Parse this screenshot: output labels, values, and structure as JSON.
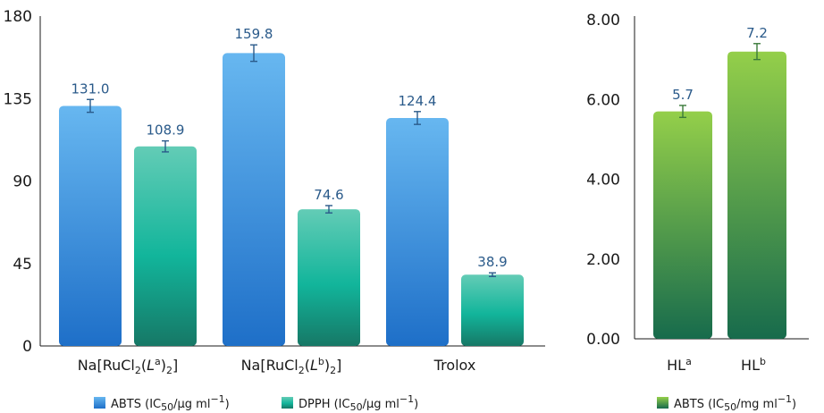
{
  "chart_data": [
    {
      "type": "bar",
      "categories": [
        "Na[RuCl2(La)2]",
        "Na[RuCl2(Lb)2]",
        "Trolox"
      ],
      "ylim": [
        0,
        180
      ],
      "yticks": [
        "0",
        "45",
        "90",
        "135",
        "180"
      ],
      "grid": false,
      "legend_position": "bottom",
      "series": [
        {
          "name": "ABTS (IC50/µg ml−1)",
          "values": [
            131.0,
            159.8,
            124.4
          ],
          "labels": [
            "131.0",
            "159.8",
            "124.4"
          ],
          "errors": [
            3.5,
            4.5,
            3.5
          ],
          "color": "#2f8fe0"
        },
        {
          "name": "DPPH (IC50/µg ml−1)",
          "values": [
            108.9,
            74.6,
            38.9
          ],
          "labels": [
            "108.9",
            "74.6",
            "38.9"
          ],
          "errors": [
            3.0,
            2.0,
            1.0
          ],
          "color": "#1fb39a"
        }
      ]
    },
    {
      "type": "bar",
      "categories": [
        "HLa",
        "HLb"
      ],
      "ylim": [
        0,
        8
      ],
      "yticks": [
        "0.00",
        "2.00",
        "4.00",
        "6.00",
        "8.00"
      ],
      "grid": false,
      "legend_position": "bottom",
      "series": [
        {
          "name": "ABTS (IC50/mg ml−1)",
          "values": [
            5.7,
            7.2
          ],
          "labels": [
            "5.7",
            "7.2"
          ],
          "errors": [
            0.15,
            0.2
          ],
          "color": "#7cc443"
        }
      ]
    }
  ],
  "colors": {
    "label_text": "#2a5a8a",
    "axis": "#1a1a1a"
  }
}
